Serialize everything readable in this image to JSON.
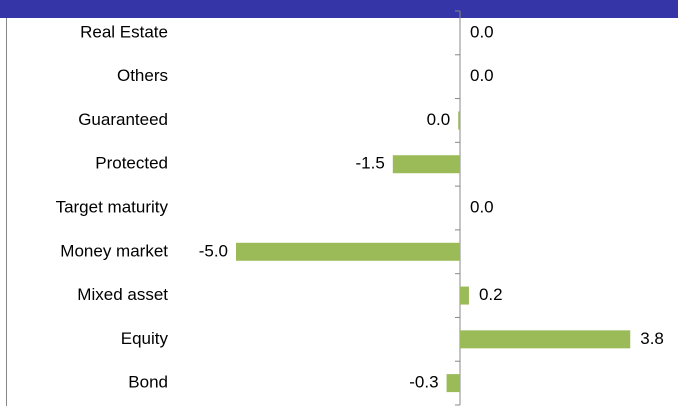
{
  "chart_data": {
    "type": "barh",
    "categories": [
      "Real Estate",
      "Others",
      "Guaranteed",
      "Protected",
      "Target maturity",
      "Money market",
      "Mixed asset",
      "Equity",
      "Bond"
    ],
    "values": [
      0,
      0,
      -0.04,
      -1.5,
      0,
      -5.0,
      0.2,
      3.8,
      -0.3
    ],
    "value_labels": [
      "0.0",
      "0.0",
      "0.0",
      "-1.5",
      "0.0",
      "-5.0",
      "0.2",
      "3.8",
      "-0.3"
    ],
    "color": "#9bbb59",
    "xlim": [
      -5,
      4
    ]
  }
}
